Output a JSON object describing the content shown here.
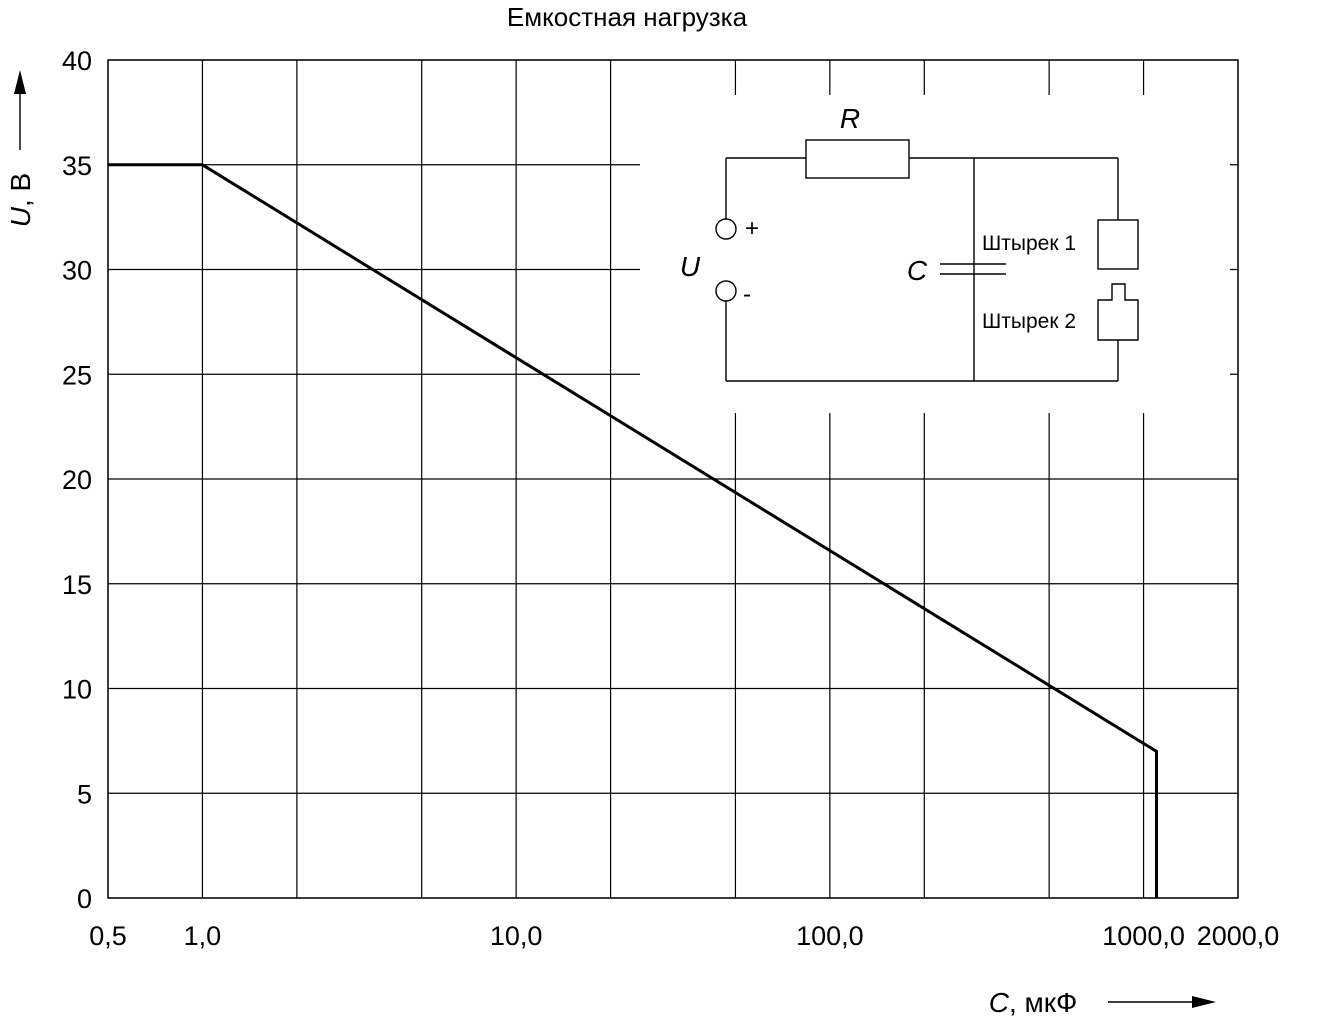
{
  "chart_data": {
    "type": "line",
    "title": "Емкостная нагрузка",
    "xlabel": {
      "symbol": "C",
      "unit": ", мкФ"
    },
    "ylabel": {
      "symbol": "U",
      "unit": ", В"
    },
    "x_scale": "log",
    "xlim": [
      0.5,
      2000
    ],
    "ylim": [
      0,
      40
    ],
    "x_tick_labels": [
      {
        "value": 0.5,
        "label": "0,5"
      },
      {
        "value": 1,
        "label": "1,0"
      },
      {
        "value": 10,
        "label": "10,0"
      },
      {
        "value": 100,
        "label": "100,0"
      },
      {
        "value": 1000,
        "label": "1000,0"
      },
      {
        "value": 2000,
        "label": "2000,0"
      }
    ],
    "x_gridlines": [
      0.5,
      1,
      2,
      5,
      10,
      20,
      50,
      100,
      200,
      500,
      1000,
      2000
    ],
    "y_ticks": [
      0,
      5,
      10,
      15,
      20,
      25,
      30,
      35,
      40
    ],
    "grid": true,
    "series": [
      {
        "x": [
          0.5,
          1,
          1100,
          1100
        ],
        "y": [
          35,
          35,
          7,
          0
        ]
      }
    ],
    "schematic": {
      "resistor_label": "R",
      "capacitor_label": "C",
      "source_label": "U",
      "plus_label": "+",
      "minus_label": "-",
      "pin1_label": "Штырек 1",
      "pin2_label": "Штырек 2"
    }
  }
}
